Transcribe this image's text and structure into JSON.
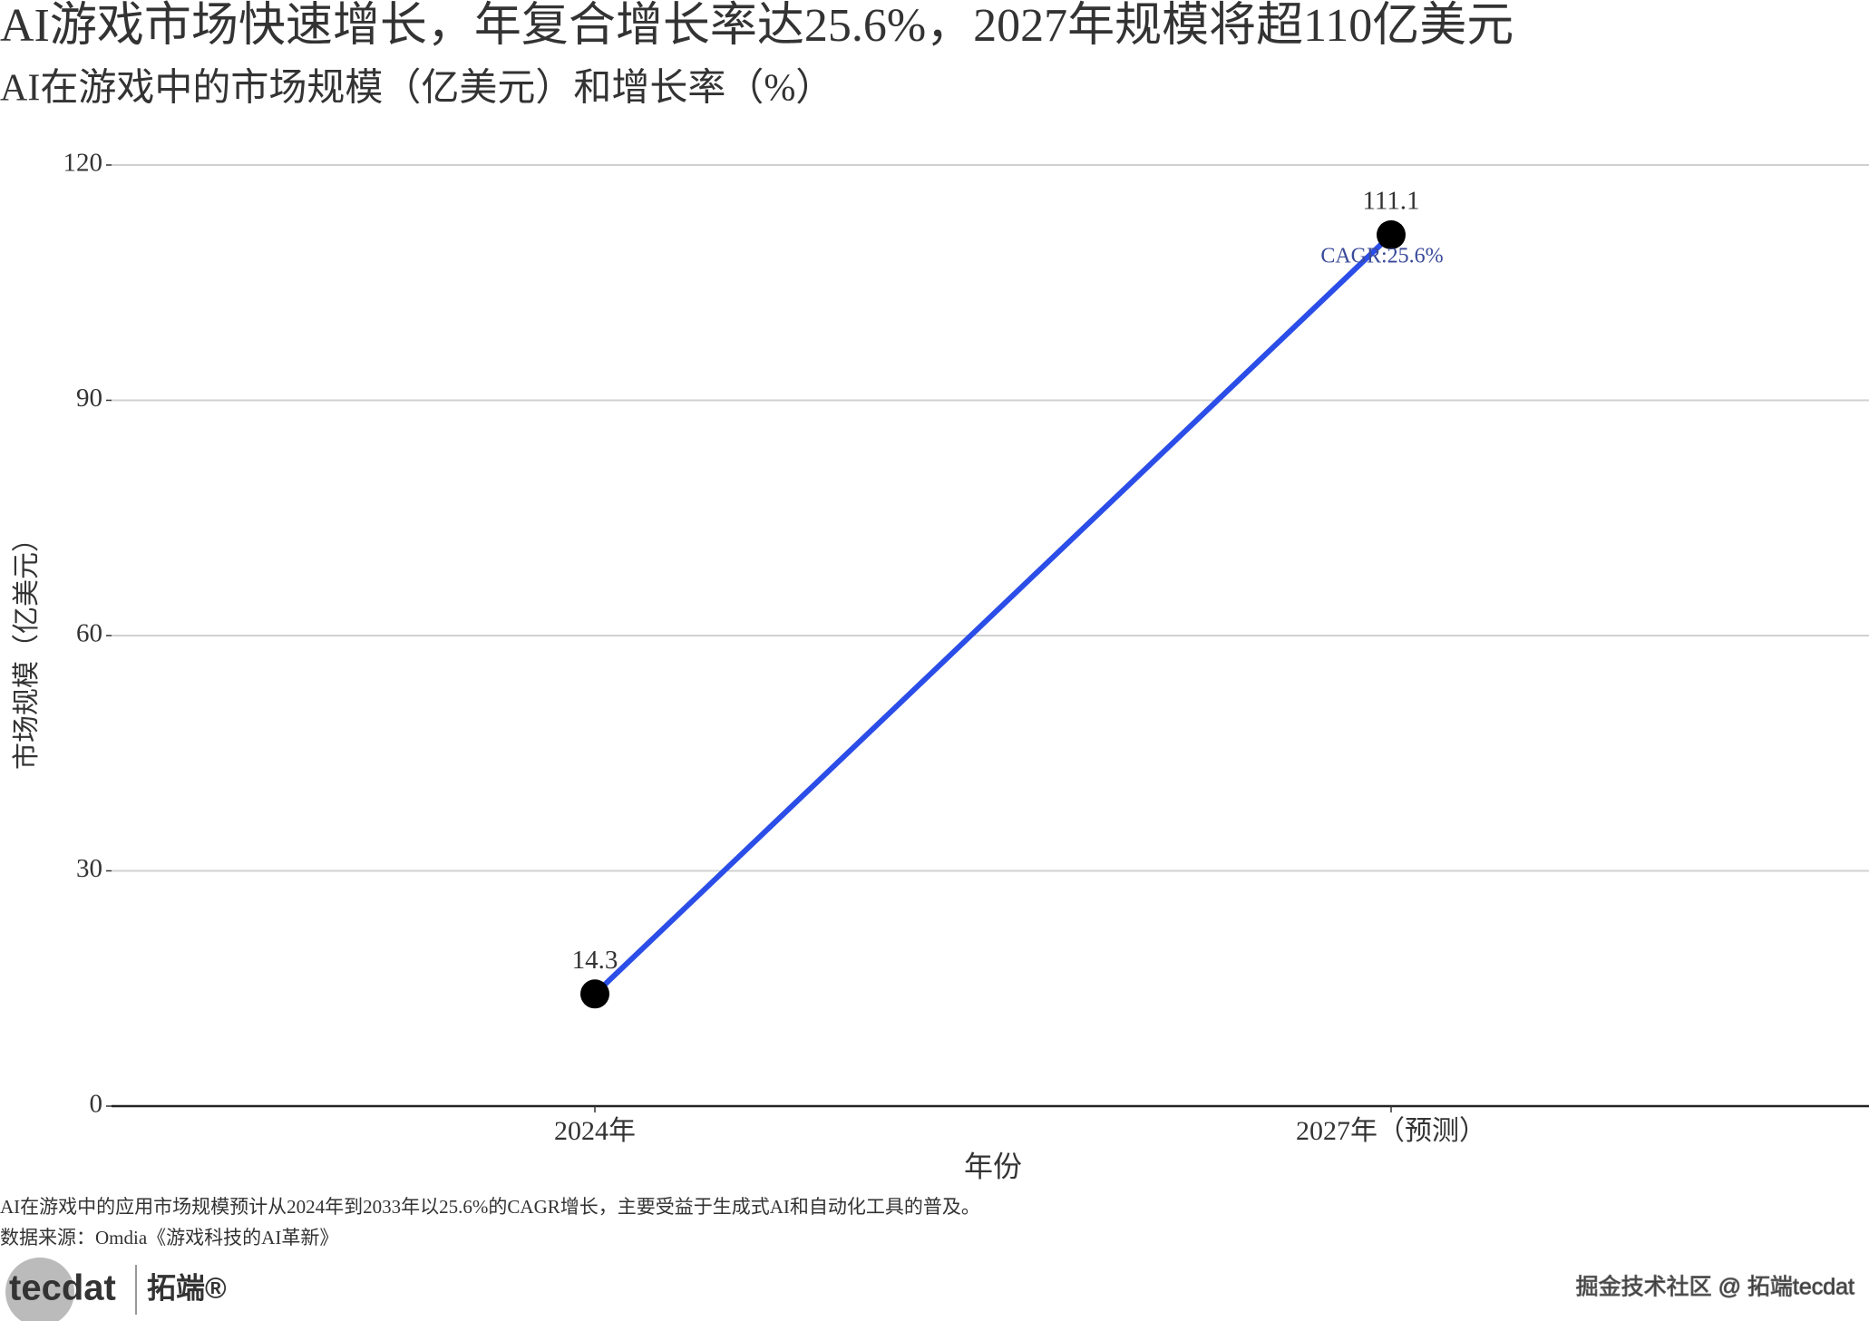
{
  "chart_data": {
    "type": "line",
    "title": "AI游戏市场快速增长，年复合增长率达25.6%，2027年规模将超110亿美元",
    "subtitle": "AI在游戏中的市场规模（亿美元）和增长率（%）",
    "x_label": "年份",
    "y_label": "市场规模（亿美元）",
    "categories": [
      "2024年",
      "2027年（预测）"
    ],
    "values": [
      14.3,
      111.1
    ],
    "annotation": "CAGR:25.6%",
    "color": "#2b4de8",
    "point_color": "#000000",
    "ylim": [
      0,
      120
    ],
    "yticks": [
      0,
      30,
      60,
      90,
      120
    ],
    "grid": true
  },
  "caption": "AI在游戏中的应用市场规模预计从2024年到2033年以25.6%的CAGR增长，主要受益于生成式AI和自动化工具的普及。",
  "source": "数据来源：Omdia《游戏科技的AI革新》",
  "logo": {
    "brand": "tecdat",
    "name": "拓端®"
  },
  "watermark": "掘金技术社区 @ 拓端tecdat"
}
